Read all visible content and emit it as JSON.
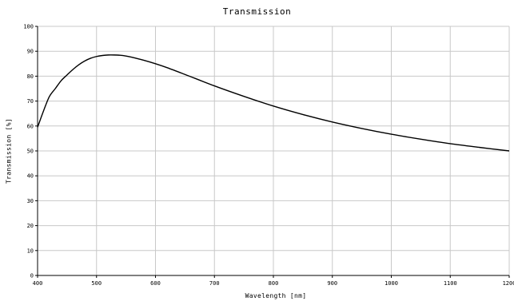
{
  "chart_data": {
    "type": "line",
    "title": "Transmission",
    "xlabel": "Wavelength [nm]",
    "ylabel": "Transmission [%]",
    "xlim": [
      400,
      1200
    ],
    "ylim": [
      0,
      100
    ],
    "x_ticks": [
      400,
      500,
      600,
      700,
      800,
      900,
      1000,
      1100,
      1200
    ],
    "y_ticks": [
      0,
      10,
      20,
      30,
      40,
      50,
      60,
      70,
      80,
      90,
      100
    ],
    "x_tick_labels": [
      "400",
      "500",
      "600",
      "700",
      "800",
      "900",
      "1000",
      "1100",
      "1200"
    ],
    "y_tick_labels": [
      "0",
      "10",
      "20",
      "30",
      "40",
      "50",
      "60",
      "70",
      "80",
      "90",
      "100"
    ],
    "grid": true,
    "line_color": "#000000",
    "grid_color": "#c8c8c8",
    "series": [
      {
        "x": [
          400,
          410,
          420,
          430,
          440,
          450,
          460,
          470,
          480,
          490,
          500,
          510,
          520,
          530,
          540,
          550,
          560,
          580,
          600,
          620,
          650,
          700,
          750,
          800,
          850,
          900,
          950,
          1000,
          1050,
          1100,
          1150,
          1200
        ],
        "y": [
          59.5,
          66,
          71.8,
          75,
          78.2,
          80.5,
          82.7,
          84.6,
          86.1,
          87.2,
          87.9,
          88.3,
          88.5,
          88.5,
          88.4,
          88.1,
          87.6,
          86.4,
          85.0,
          83.4,
          80.7,
          76.1,
          71.9,
          68.0,
          64.6,
          61.6,
          59.0,
          56.7,
          54.7,
          52.9,
          51.4,
          50.0
        ]
      }
    ]
  }
}
